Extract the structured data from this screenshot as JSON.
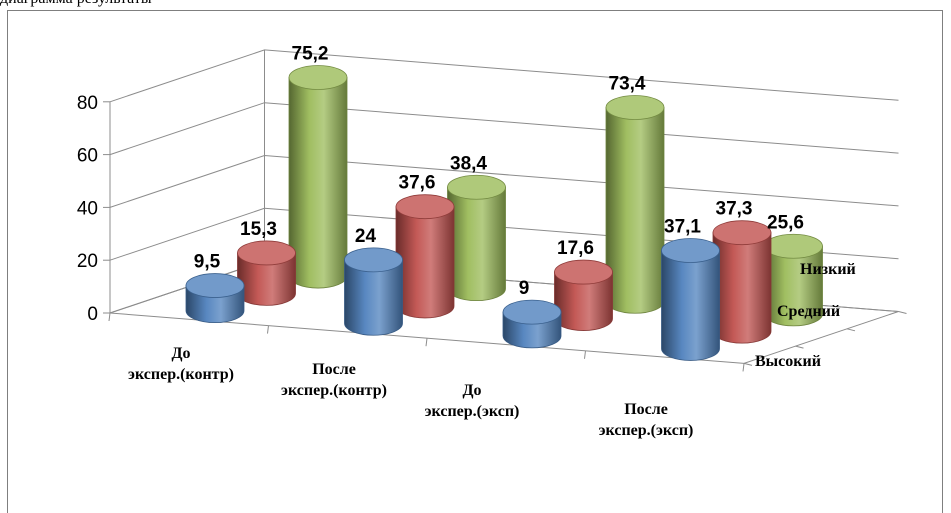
{
  "caption_fragment": "диаграмма результаты",
  "colors": {
    "high": "#4f81bd",
    "medium": "#c0504d",
    "low": "#9bbb59"
  },
  "chart_data": {
    "type": "bar",
    "style": "3d-cylinder",
    "categories": [
      "До экспер.(контр)",
      "После экспер.(контр)",
      "До экспер.(эксп)",
      "После экспер.(эксп)"
    ],
    "series": [
      {
        "name": "Высокий",
        "values": [
          9.5,
          24,
          9,
          37.1
        ]
      },
      {
        "name": "Средний",
        "values": [
          15.3,
          37.6,
          17.6,
          37.3
        ]
      },
      {
        "name": "Низкий",
        "values": [
          75.2,
          38.4,
          73.4,
          25.6
        ]
      }
    ],
    "value_labels": {
      "Высокий": [
        "9,5",
        "24",
        "9",
        "37,1"
      ],
      "Средний": [
        "15,3",
        "37,6",
        "17,6",
        "37,3"
      ],
      "Низкий": [
        "75,2",
        "38,4",
        "73,4",
        "25,6"
      ]
    },
    "yticks": [
      "0",
      "20",
      "40",
      "60",
      "80"
    ],
    "ylim": [
      0,
      80
    ],
    "grid": true
  }
}
